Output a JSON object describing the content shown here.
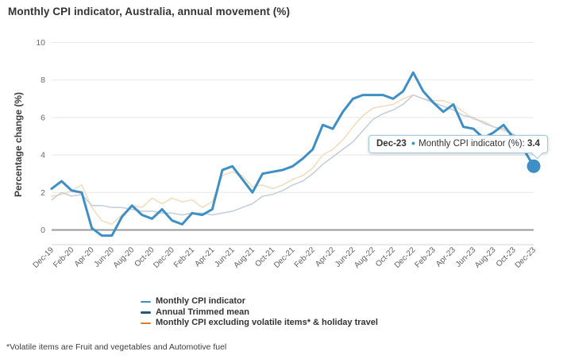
{
  "header": {
    "title": "Monthly CPI indicator, Australia, annual movement (%)"
  },
  "footnote": {
    "text": "*Volatile items are Fruit and vegetables and Automotive fuel"
  },
  "tooltip": {
    "date": "Dec-23",
    "bullet": "●",
    "label": "Monthly CPI indicator (%):",
    "value": "3.4"
  },
  "colors": {
    "highlight_blue": "#3E8FC5",
    "legend_navy": "#27567C",
    "legend_orange": "#DE7E2D",
    "dimmed_navy": "#C3CDD8",
    "dimmed_orange": "#F5DABB",
    "gridline": "#E8E8E8",
    "zero_line": "#9A9A9A",
    "axis_line": "#D6D6D6",
    "tick_text": "#696969",
    "dark_text": "#333333"
  },
  "chart_data": {
    "type": "line",
    "title": "Monthly CPI indicator, Australia, annual movement (%)",
    "xlabel": "",
    "ylabel": "Percentage change (%)",
    "ylim": [
      -0.78,
      10
    ],
    "yticks": [
      0,
      2,
      4,
      6,
      8,
      10
    ],
    "grid": true,
    "legend_position": "bottom-left",
    "x": [
      "Dec-19",
      "Jan-20",
      "Feb-20",
      "Mar-20",
      "Apr-20",
      "May-20",
      "Jun-20",
      "Jul-20",
      "Aug-20",
      "Sep-20",
      "Oct-20",
      "Nov-20",
      "Dec-20",
      "Jan-21",
      "Feb-21",
      "Mar-21",
      "Apr-21",
      "May-21",
      "Jun-21",
      "Jul-21",
      "Aug-21",
      "Sep-21",
      "Oct-21",
      "Nov-21",
      "Dec-21",
      "Jan-22",
      "Feb-22",
      "Mar-22",
      "Apr-22",
      "May-22",
      "Jun-22",
      "Jul-22",
      "Aug-22",
      "Sep-22",
      "Oct-22",
      "Nov-22",
      "Dec-22",
      "Jan-23",
      "Feb-23",
      "Mar-23",
      "Apr-23",
      "May-23",
      "Jun-23",
      "Jul-23",
      "Aug-23",
      "Sep-23",
      "Oct-23",
      "Nov-23",
      "Dec-23"
    ],
    "x_tick_labels": [
      "Dec-19",
      "Feb-20",
      "Apr-20",
      "Jun-20",
      "Aug-20",
      "Oct-20",
      "Dec-20",
      "Feb-21",
      "Apr-21",
      "Jun-21",
      "Aug-21",
      "Oct-21",
      "Dec-21",
      "Feb-22",
      "Apr-22",
      "Jun-22",
      "Aug-22",
      "Oct-22",
      "Dec-22",
      "Feb-23",
      "Apr-23",
      "Jun-23",
      "Aug-23",
      "Oct-23",
      "Dec-23"
    ],
    "series": [
      {
        "name": "Monthly CPI indicator",
        "color": "#3E8FC5",
        "plot_color": "#3E8FC5",
        "width": 3,
        "values": [
          2.2,
          2.6,
          2.1,
          2.0,
          0.1,
          -0.3,
          -0.3,
          0.7,
          1.3,
          0.8,
          0.6,
          1.1,
          0.5,
          0.3,
          0.9,
          0.8,
          1.1,
          3.2,
          3.4,
          2.7,
          2.0,
          3.0,
          3.1,
          3.2,
          3.4,
          3.8,
          4.3,
          5.6,
          5.4,
          6.3,
          7.0,
          7.2,
          7.2,
          7.2,
          7.0,
          7.4,
          8.4,
          7.4,
          6.8,
          6.3,
          6.7,
          5.5,
          5.4,
          4.9,
          5.2,
          5.6,
          4.9,
          4.3,
          3.4
        ]
      },
      {
        "name": "Annual Trimmed mean",
        "color": "#27567C",
        "plot_color": "#C3CDD8",
        "width": 1.5,
        "values": [
          1.6,
          2.0,
          1.8,
          1.9,
          1.3,
          1.3,
          1.2,
          1.2,
          1.1,
          1.0,
          1.0,
          0.9,
          0.9,
          0.8,
          0.9,
          0.9,
          0.8,
          0.9,
          1.0,
          1.2,
          1.4,
          1.8,
          1.9,
          2.1,
          2.4,
          2.6,
          3.0,
          3.5,
          3.9,
          4.3,
          4.7,
          5.3,
          5.9,
          6.2,
          6.4,
          6.7,
          7.2,
          7.0,
          6.8,
          6.6,
          6.4,
          6.1,
          6.0,
          5.7,
          5.5,
          5.4,
          5.1,
          4.6,
          4.0
        ]
      },
      {
        "name": "Monthly CPI excluding volatile items* & holiday travel",
        "color": "#DE7E2D",
        "plot_color": "#F5DABB",
        "width": 1.5,
        "values": [
          1.8,
          1.9,
          2.1,
          2.4,
          1.2,
          0.5,
          0.3,
          0.8,
          1.3,
          1.2,
          1.7,
          1.4,
          1.7,
          1.5,
          1.6,
          1.2,
          1.5,
          2.9,
          3.1,
          2.9,
          2.3,
          2.4,
          2.2,
          2.4,
          2.7,
          2.9,
          3.3,
          4.0,
          4.3,
          4.8,
          5.5,
          6.1,
          6.5,
          6.6,
          6.7,
          7.0,
          7.2,
          7.0,
          6.9,
          6.9,
          6.7,
          6.3,
          5.9,
          5.8,
          5.5,
          5.3,
          5.1,
          4.8,
          4.3
        ]
      }
    ],
    "highlight_point": {
      "series": "Monthly CPI indicator",
      "x": "Dec-23",
      "value": 3.4
    }
  }
}
